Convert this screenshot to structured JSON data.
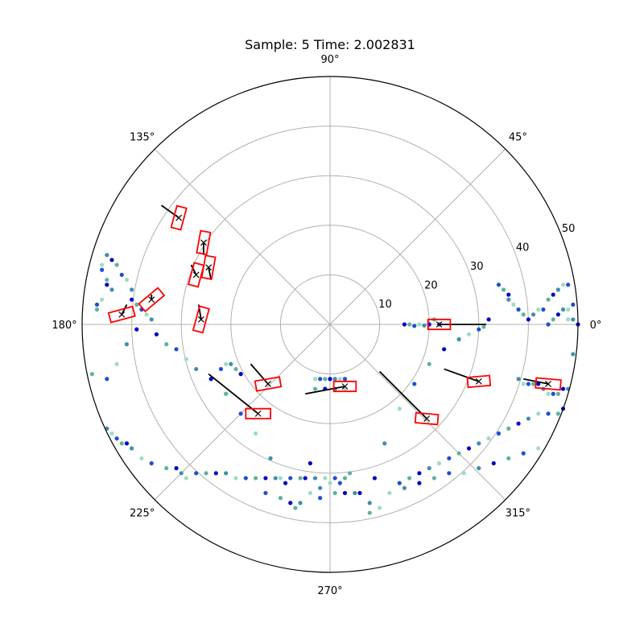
{
  "chart_data": {
    "type": "scatter",
    "projection": "polar",
    "title": "Sample: 5 Time: 2.002831",
    "xlabel": "",
    "ylabel": "",
    "rlim": [
      0,
      50
    ],
    "theta_ticks": [
      {
        "deg": 0,
        "label": "0°"
      },
      {
        "deg": 45,
        "label": "45°"
      },
      {
        "deg": 90,
        "label": "90°"
      },
      {
        "deg": 135,
        "label": "135°"
      },
      {
        "deg": 180,
        "label": "180°"
      },
      {
        "deg": 225,
        "label": "225°"
      },
      {
        "deg": 270,
        "label": "270°"
      },
      {
        "deg": 315,
        "label": "315°"
      }
    ],
    "r_ticks": [
      {
        "r": 10,
        "label": "10"
      },
      {
        "r": 20,
        "label": "20"
      },
      {
        "r": 30,
        "label": "30"
      },
      {
        "r": 40,
        "label": "40"
      },
      {
        "r": 50,
        "label": "50"
      }
    ],
    "r_label_angle_deg": 22.5,
    "grid": true,
    "colors": {
      "box": "#ff0000",
      "marker": "#000000",
      "line": "#000000",
      "spine": "#000000",
      "grid": "#b0b0b0"
    },
    "point_colors": [
      "#0000cc",
      "#1f4fd1",
      "#3f8fae",
      "#5fb39a",
      "#9edcc0"
    ],
    "points": [
      [
        8,
        -38
      ],
      [
        9,
        -31
      ],
      [
        11,
        -24
      ],
      [
        14,
        -17
      ],
      [
        17,
        -12
      ],
      [
        20,
        -8
      ],
      [
        23,
        -5
      ],
      [
        26,
        -3
      ],
      [
        28,
        -2
      ],
      [
        30,
        -1
      ],
      [
        31,
        -0.5
      ],
      [
        32,
        1
      ],
      [
        38,
        -57
      ],
      [
        40,
        -55
      ],
      [
        42,
        -52
      ],
      [
        44,
        -50
      ],
      [
        46,
        -48
      ],
      [
        49,
        -45
      ],
      [
        47,
        -47
      ],
      [
        45,
        -49
      ],
      [
        43,
        -51
      ],
      [
        41,
        -53
      ],
      [
        39,
        -56
      ],
      [
        50,
        -44
      ],
      [
        48,
        -46
      ],
      [
        -7,
        -37
      ],
      [
        -9,
        -32
      ],
      [
        -12,
        -27
      ],
      [
        -15,
        -22
      ],
      [
        -18,
        -18
      ],
      [
        -21,
        -14
      ],
      [
        -24,
        -11
      ],
      [
        -27,
        -9
      ],
      [
        -29,
        -7
      ],
      [
        -31,
        -5
      ],
      [
        -33,
        -4
      ],
      [
        -35,
        -2
      ],
      [
        -36,
        1
      ],
      [
        -37,
        2
      ],
      [
        -38,
        3
      ],
      [
        -39,
        4
      ],
      [
        -40,
        5
      ],
      [
        -40,
        7
      ],
      [
        -41,
        9
      ],
      [
        -42,
        10
      ],
      [
        -43,
        12
      ],
      [
        -44,
        13
      ],
      [
        -45,
        14
      ],
      [
        -46,
        12
      ],
      [
        -46,
        11
      ],
      [
        -45,
        9
      ],
      [
        -45,
        8
      ],
      [
        -44,
        7
      ],
      [
        -46,
        5
      ],
      [
        -47,
        4
      ],
      [
        -47,
        3
      ],
      [
        -39,
        -1
      ],
      [
        -41,
        -4
      ],
      [
        -43,
        -8
      ],
      [
        -45,
        -11
      ],
      [
        -48,
        -10
      ],
      [
        -50,
        -12
      ],
      [
        -45,
        -21
      ],
      [
        -44,
        -22
      ],
      [
        -43,
        -23
      ],
      [
        -42,
        -24
      ],
      [
        -41,
        -24
      ],
      [
        -40,
        -25
      ],
      [
        -38,
        -27
      ],
      [
        -36,
        -28
      ],
      [
        -33,
        -29
      ],
      [
        -31,
        -29
      ],
      [
        -30,
        -30
      ],
      [
        -29,
        -31
      ],
      [
        -27,
        -30
      ],
      [
        -25,
        -30
      ],
      [
        -23,
        -30
      ],
      [
        -21,
        -30
      ],
      [
        -19,
        -31
      ],
      [
        -17,
        -31
      ],
      [
        -15,
        -31
      ],
      [
        -13,
        -31
      ],
      [
        -11,
        -31
      ],
      [
        -10,
        -31
      ],
      [
        -8,
        -31
      ],
      [
        -6,
        -31
      ],
      [
        -5,
        -31
      ],
      [
        -3,
        -31
      ],
      [
        -1,
        -31
      ],
      [
        1,
        -31
      ],
      [
        3,
        -31
      ],
      [
        -4,
        -28
      ],
      [
        -2,
        -33
      ],
      [
        0,
        -32
      ],
      [
        2,
        -32
      ],
      [
        4,
        -30
      ],
      [
        6,
        -34
      ],
      [
        8,
        -36
      ],
      [
        10,
        -37
      ],
      [
        14,
        -32
      ],
      [
        16,
        -31
      ],
      [
        18,
        -30
      ],
      [
        20,
        -29
      ],
      [
        22,
        -28
      ],
      [
        24,
        -27
      ],
      [
        26,
        -26
      ],
      [
        28,
        -25
      ],
      [
        30,
        -24
      ],
      [
        32,
        -23
      ],
      [
        34,
        -22
      ],
      [
        36,
        -21
      ],
      [
        38,
        -20
      ],
      [
        40,
        -19
      ],
      [
        42,
        -18
      ],
      [
        44,
        -18
      ],
      [
        46,
        -18
      ],
      [
        47,
        -17
      ],
      [
        48,
        -16
      ],
      [
        49,
        -15
      ],
      [
        50,
        -14
      ],
      [
        51,
        -12
      ],
      [
        48,
        -22
      ],
      [
        45,
        -23
      ],
      [
        42,
        -25
      ],
      [
        39,
        -26
      ],
      [
        36,
        -27
      ],
      [
        33,
        -28
      ],
      [
        30,
        -29
      ],
      [
        27,
        -30
      ],
      [
        24,
        -30
      ],
      [
        21,
        -31
      ],
      [
        18,
        -32
      ],
      [
        15,
        -33
      ],
      [
        12,
        -34
      ],
      [
        -13,
        -34
      ],
      [
        -10,
        -35
      ],
      [
        -8,
        -36
      ],
      [
        -6,
        -36
      ],
      [
        -4,
        -34
      ],
      [
        -2,
        -35
      ],
      [
        1,
        -34
      ],
      [
        3,
        -34
      ],
      [
        5,
        -34
      ],
      [
        -3,
        -11
      ],
      [
        -2,
        -11
      ],
      [
        -1,
        -11
      ],
      [
        0,
        -11
      ],
      [
        1,
        -11
      ],
      [
        2,
        -11
      ],
      [
        3,
        -11
      ],
      [
        -3,
        -13
      ],
      [
        -1,
        -13
      ],
      [
        1,
        -13
      ],
      [
        3,
        -13
      ],
      [
        22,
        0
      ],
      [
        21,
        1
      ],
      [
        20,
        0
      ],
      [
        19,
        -0.2
      ],
      [
        18,
        0
      ],
      [
        17,
        -0.3
      ],
      [
        16,
        0
      ],
      [
        15,
        0
      ],
      [
        -20,
        -8
      ],
      [
        -21,
        -8
      ],
      [
        -22,
        -9
      ],
      [
        -19,
        -9
      ],
      [
        -18,
        -10
      ],
      [
        38,
        -11
      ],
      [
        39,
        -12
      ],
      [
        40,
        -12
      ],
      [
        41,
        -12
      ],
      [
        42,
        -12
      ],
      [
        43,
        -13
      ],
      [
        44,
        -14
      ],
      [
        45,
        -14
      ],
      [
        46,
        -14
      ],
      [
        47,
        -13
      ],
      [
        48,
        -13
      ],
      [
        49,
        -13
      ],
      [
        50,
        -13
      ],
      [
        51,
        -5
      ],
      [
        52,
        -5
      ],
      [
        49,
        -6
      ],
      [
        50,
        -6
      ],
      [
        44,
        0
      ],
      [
        45,
        1
      ],
      [
        46,
        2
      ],
      [
        47,
        3
      ],
      [
        48,
        3
      ],
      [
        49,
        4
      ],
      [
        50,
        4
      ],
      [
        51,
        2
      ],
      [
        52,
        2
      ],
      [
        53,
        1
      ],
      [
        52,
        0
      ],
      [
        51,
        0
      ],
      [
        50,
        0
      ],
      [
        49,
        1
      ],
      [
        48,
        1
      ],
      [
        34,
        8
      ],
      [
        35,
        7
      ],
      [
        36,
        6
      ],
      [
        36,
        5
      ],
      [
        37,
        4
      ],
      [
        38,
        3
      ],
      [
        39,
        2
      ],
      [
        40,
        1
      ],
      [
        41,
        2
      ],
      [
        42,
        3
      ],
      [
        43,
        3
      ],
      [
        44,
        5
      ],
      [
        45,
        6
      ],
      [
        46,
        7
      ],
      [
        47,
        8
      ],
      [
        48,
        8
      ]
    ],
    "boxes": [
      {
        "x": 22,
        "y": 0,
        "len": 4.5,
        "wid": 2.0,
        "ang": 0,
        "lx": 31.5,
        "ly": 0
      },
      {
        "x": 30,
        "y": -11.5,
        "len": 4.5,
        "wid": 2.0,
        "ang": 5,
        "lx": 23,
        "ly": -9
      },
      {
        "x": 44,
        "y": -12,
        "len": 5.0,
        "wid": 2.0,
        "ang": -5,
        "lx": 39,
        "ly": -11
      },
      {
        "x": 19.5,
        "y": -19,
        "len": 4.5,
        "wid": 2.0,
        "ang": -5,
        "lx": 10,
        "ly": -9.5
      },
      {
        "x": 3,
        "y": -12.5,
        "len": 4.5,
        "wid": 2.0,
        "ang": 0,
        "lx": -5,
        "ly": -14
      },
      {
        "x": -12.5,
        "y": -12,
        "len": 5.0,
        "wid": 2.0,
        "ang": 10,
        "lx": -16,
        "ly": -8
      },
      {
        "x": -14.5,
        "y": -18,
        "len": 5.0,
        "wid": 2.0,
        "ang": 0,
        "lx": -24.5,
        "ly": -10
      },
      {
        "x": -42,
        "y": 2,
        "len": 5.0,
        "wid": 2.0,
        "ang": 15,
        "lx": -41,
        "ly": 4
      },
      {
        "x": -36,
        "y": 5,
        "len": 5.0,
        "wid": 2.0,
        "ang": 40,
        "lx": -36,
        "ly": 6
      },
      {
        "x": -26,
        "y": 1,
        "len": 5.0,
        "wid": 2.0,
        "ang": 75,
        "lx": -26.5,
        "ly": 4
      },
      {
        "x": -27,
        "y": 10,
        "len": 4.5,
        "wid": 2.0,
        "ang": 75,
        "lx": -28,
        "ly": 12
      },
      {
        "x": -24.5,
        "y": 11.5,
        "len": 4.5,
        "wid": 2.0,
        "ang": 80,
        "lx": -24,
        "ly": 9
      },
      {
        "x": -25.5,
        "y": 16.5,
        "len": 4.5,
        "wid": 2.0,
        "ang": 80,
        "lx": -25.5,
        "ly": 14
      },
      {
        "x": -30.5,
        "y": 21.5,
        "len": 4.5,
        "wid": 2.0,
        "ang": 75,
        "lx": -34,
        "ly": 24
      }
    ]
  }
}
